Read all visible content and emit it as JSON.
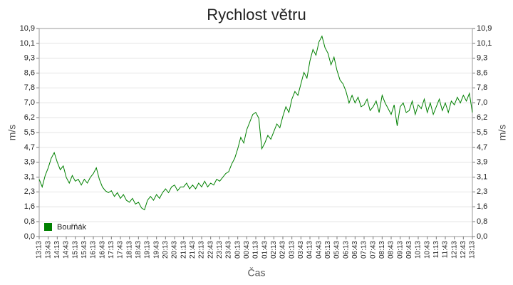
{
  "chart_data": {
    "type": "line",
    "title": "Rychlost větru",
    "x_label": "Čas",
    "y_label": "m/s",
    "y2_label": "m/s",
    "categories": [
      "13:13",
      null,
      null,
      "13:43",
      null,
      null,
      "14:13",
      null,
      null,
      "14:43",
      null,
      null,
      "15:13",
      null,
      null,
      "15:43",
      null,
      null,
      "16:13",
      null,
      null,
      "16:43",
      null,
      null,
      "17:13",
      null,
      null,
      "17:43",
      null,
      null,
      "18:13",
      null,
      null,
      "18:43",
      null,
      null,
      "19:13",
      null,
      null,
      "19:43",
      null,
      null,
      "20:13",
      null,
      null,
      "20:43",
      null,
      null,
      "21:13",
      null,
      null,
      "21:43",
      null,
      null,
      "22:13",
      null,
      null,
      "22:43",
      null,
      null,
      "23:13",
      null,
      null,
      "23:43",
      null,
      null,
      "00:13",
      null,
      null,
      "00:43",
      null,
      null,
      "01:13",
      null,
      null,
      "01:43",
      null,
      null,
      "02:13",
      null,
      null,
      "02:43",
      null,
      null,
      "03:13",
      null,
      null,
      "03:43",
      null,
      null,
      "04:13",
      null,
      null,
      "04:43",
      null,
      null,
      "05:13",
      null,
      null,
      "05:43",
      null,
      null,
      "06:13",
      null,
      null,
      "06:43",
      null,
      null,
      "07:13",
      null,
      null,
      "07:43",
      null,
      null,
      "08:13",
      null,
      null,
      "08:43",
      null,
      null,
      "09:13",
      null,
      null,
      "09:43",
      null,
      null,
      "10:13",
      null,
      null,
      "10:43",
      null,
      null,
      "11:13",
      null,
      null,
      "11:43",
      null,
      null,
      "12:13",
      null,
      null,
      "12:43",
      null,
      null,
      "13:13"
    ],
    "series": [
      {
        "name": "Bouřňák",
        "color": "#008000",
        "values": [
          3.0,
          2.6,
          3.2,
          3.6,
          4.1,
          4.4,
          3.9,
          3.5,
          3.7,
          3.1,
          2.8,
          3.2,
          2.9,
          3.0,
          2.7,
          3.0,
          2.8,
          3.1,
          3.3,
          3.6,
          3.0,
          2.6,
          2.4,
          2.3,
          2.4,
          2.1,
          2.3,
          2.0,
          2.2,
          1.9,
          1.8,
          2.0,
          1.7,
          1.8,
          1.5,
          1.4,
          1.9,
          2.1,
          1.9,
          2.2,
          2.0,
          2.3,
          2.5,
          2.3,
          2.6,
          2.7,
          2.4,
          2.6,
          2.6,
          2.8,
          2.5,
          2.7,
          2.5,
          2.8,
          2.6,
          2.9,
          2.6,
          2.8,
          2.7,
          3.0,
          2.9,
          3.1,
          3.3,
          3.4,
          3.8,
          4.1,
          4.6,
          5.2,
          4.9,
          5.6,
          6.0,
          6.4,
          6.5,
          6.2,
          4.6,
          4.9,
          5.3,
          5.1,
          5.5,
          5.9,
          5.7,
          6.3,
          6.8,
          6.5,
          7.2,
          7.6,
          7.4,
          8.0,
          8.6,
          8.3,
          9.2,
          9.8,
          9.5,
          10.2,
          10.5,
          9.9,
          9.6,
          9.0,
          9.4,
          8.7,
          8.2,
          8.0,
          7.6,
          7.0,
          7.4,
          7.0,
          7.3,
          6.8,
          6.9,
          7.2,
          6.6,
          6.8,
          7.1,
          6.5,
          7.4,
          7.0,
          6.7,
          6.4,
          6.9,
          5.8,
          6.8,
          7.0,
          6.5,
          6.6,
          7.1,
          6.4,
          6.9,
          6.7,
          7.2,
          6.5,
          7.0,
          6.4,
          6.8,
          7.2,
          6.6,
          7.0,
          6.5,
          7.1,
          6.9,
          7.3,
          7.0,
          7.4,
          7.1,
          7.5,
          6.5
        ]
      }
    ],
    "ylim": [
      0,
      10.9
    ],
    "yticks": [
      {
        "value": 0,
        "label": "0,0"
      },
      {
        "value": 0.78,
        "label": "0,8"
      },
      {
        "value": 1.56,
        "label": "1,6"
      },
      {
        "value": 2.34,
        "label": "2,3"
      },
      {
        "value": 3.11,
        "label": "3,1"
      },
      {
        "value": 3.89,
        "label": "3,9"
      },
      {
        "value": 4.67,
        "label": "4,7"
      },
      {
        "value": 5.45,
        "label": "5,5"
      },
      {
        "value": 6.23,
        "label": "6,2"
      },
      {
        "value": 7.01,
        "label": "7,0"
      },
      {
        "value": 7.79,
        "label": "7,8"
      },
      {
        "value": 8.56,
        "label": "8,6"
      },
      {
        "value": 9.34,
        "label": "9,3"
      },
      {
        "value": 10.12,
        "label": "10,1"
      },
      {
        "value": 10.9,
        "label": "10,9"
      }
    ],
    "y2lim": [
      0,
      10.9
    ],
    "y2ticks": [
      {
        "value": 0,
        "label": "0,0"
      },
      {
        "value": 0.78,
        "label": "0,8"
      },
      {
        "value": 1.56,
        "label": "1,6"
      },
      {
        "value": 2.34,
        "label": "2,3"
      },
      {
        "value": 3.11,
        "label": "3,1"
      },
      {
        "value": 3.89,
        "label": "3,9"
      },
      {
        "value": 4.67,
        "label": "4,7"
      },
      {
        "value": 5.45,
        "label": "5,5"
      },
      {
        "value": 6.23,
        "label": "6,2"
      },
      {
        "value": 7.01,
        "label": "7,0"
      },
      {
        "value": 7.79,
        "label": "7,8"
      },
      {
        "value": 8.56,
        "label": "8,6"
      },
      {
        "value": 9.34,
        "label": "9,3"
      },
      {
        "value": 10.12,
        "label": "10,1"
      },
      {
        "value": 10.9,
        "label": "10,9"
      }
    ],
    "grid": true,
    "legend": "lower-left"
  }
}
